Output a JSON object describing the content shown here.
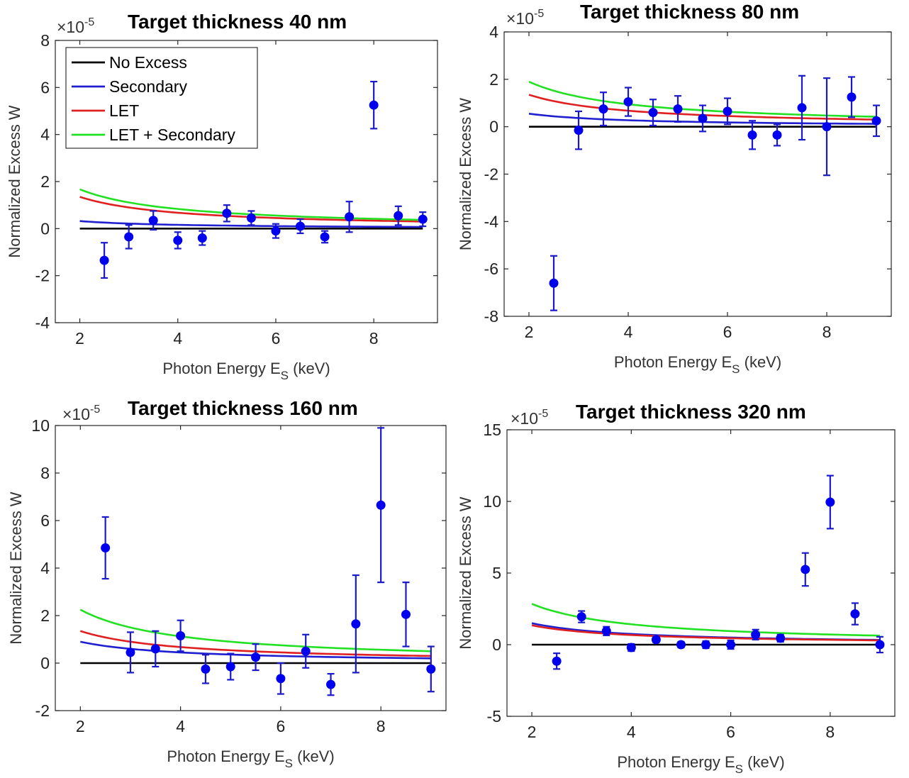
{
  "figure": {
    "xlabel_main": "Photon Energy  E",
    "xlabel_sub": "S",
    "xlabel_unit": "  (keV)",
    "ylabel": "Normalized Excess  W",
    "exponent_base": "×10",
    "exponent_power": "-5",
    "legend": {
      "placement": "top-left of first panel",
      "entries": [
        {
          "label": "No Excess",
          "color": "#000000"
        },
        {
          "label": "Secondary",
          "color": "#1f1fd0"
        },
        {
          "label": "LET",
          "color": "#e02020"
        },
        {
          "label": "LET + Secondary",
          "color": "#22e022"
        }
      ]
    },
    "colors": {
      "data_points": "#0000ee",
      "error_bars": "#1a1acc"
    }
  },
  "chart_data": [
    {
      "type": "scatter",
      "title": "Target thickness 40 nm",
      "xlabel": "Photon Energy E_S (keV)",
      "ylabel": "Normalized Excess W",
      "y_scale_factor": "×10^-5",
      "xlim": [
        1.5,
        9.3
      ],
      "ylim": [
        -4,
        8
      ],
      "xticks": [
        2,
        4,
        6,
        8
      ],
      "yticks": [
        -4,
        -2,
        0,
        2,
        4,
        6,
        8
      ],
      "legend": true,
      "points": [
        {
          "x": 2.5,
          "y": -1.35,
          "err": 0.75
        },
        {
          "x": 3.0,
          "y": -0.35,
          "err": 0.5
        },
        {
          "x": 3.5,
          "y": 0.35,
          "err": 0.4
        },
        {
          "x": 4.0,
          "y": -0.5,
          "err": 0.35
        },
        {
          "x": 4.5,
          "y": -0.4,
          "err": 0.3
        },
        {
          "x": 5.0,
          "y": 0.65,
          "err": 0.35
        },
        {
          "x": 5.5,
          "y": 0.45,
          "err": 0.3
        },
        {
          "x": 6.0,
          "y": -0.1,
          "err": 0.3
        },
        {
          "x": 6.5,
          "y": 0.1,
          "err": 0.3
        },
        {
          "x": 7.0,
          "y": -0.35,
          "err": 0.25
        },
        {
          "x": 7.5,
          "y": 0.5,
          "err": 0.65
        },
        {
          "x": 8.0,
          "y": 5.25,
          "err": 1.0
        },
        {
          "x": 8.5,
          "y": 0.55,
          "err": 0.4
        },
        {
          "x": 9.0,
          "y": 0.4,
          "err": 0.3
        }
      ],
      "series": [
        {
          "name": "No Excess",
          "x": [
            2,
            3,
            4,
            5,
            6,
            7,
            8,
            9
          ],
          "values": [
            0,
            0,
            0,
            0,
            0,
            0,
            0,
            0
          ]
        },
        {
          "name": "Secondary",
          "x": [
            2,
            3,
            4,
            5,
            6,
            7,
            8,
            9
          ],
          "values": [
            0.32,
            0.22,
            0.16,
            0.12,
            0.1,
            0.09,
            0.08,
            0.07
          ]
        },
        {
          "name": "LET",
          "x": [
            2,
            3,
            4,
            5,
            6,
            7,
            8,
            9
          ],
          "values": [
            1.35,
            0.95,
            0.72,
            0.57,
            0.47,
            0.4,
            0.35,
            0.3
          ]
        },
        {
          "name": "LET + Secondary",
          "x": [
            2,
            3,
            4,
            5,
            6,
            7,
            8,
            9
          ],
          "values": [
            1.67,
            1.17,
            0.88,
            0.69,
            0.57,
            0.49,
            0.43,
            0.37
          ]
        }
      ]
    },
    {
      "type": "scatter",
      "title": "Target thickness 80 nm",
      "xlabel": "Photon Energy E_S (keV)",
      "ylabel": "Normalized Excess W",
      "y_scale_factor": "×10^-5",
      "xlim": [
        1.5,
        9.3
      ],
      "ylim": [
        -8,
        4
      ],
      "xticks": [
        2,
        4,
        6,
        8
      ],
      "yticks": [
        -8,
        -6,
        -4,
        -2,
        0,
        2,
        4
      ],
      "legend": false,
      "points": [
        {
          "x": 2.5,
          "y": -6.6,
          "err": 1.15
        },
        {
          "x": 3.0,
          "y": -0.15,
          "err": 0.8
        },
        {
          "x": 3.5,
          "y": 0.75,
          "err": 0.7
        },
        {
          "x": 4.0,
          "y": 1.05,
          "err": 0.6
        },
        {
          "x": 4.5,
          "y": 0.6,
          "err": 0.55
        },
        {
          "x": 5.0,
          "y": 0.75,
          "err": 0.55
        },
        {
          "x": 5.5,
          "y": 0.35,
          "err": 0.55
        },
        {
          "x": 6.0,
          "y": 0.65,
          "err": 0.55
        },
        {
          "x": 6.5,
          "y": -0.35,
          "err": 0.6
        },
        {
          "x": 7.0,
          "y": -0.35,
          "err": 0.45
        },
        {
          "x": 7.5,
          "y": 0.8,
          "err": 1.35
        },
        {
          "x": 8.0,
          "y": 0.0,
          "err": 2.05
        },
        {
          "x": 8.5,
          "y": 1.25,
          "err": 0.85
        },
        {
          "x": 9.0,
          "y": 0.25,
          "err": 0.65
        }
      ],
      "series": [
        {
          "name": "No Excess",
          "x": [
            2,
            3,
            4,
            5,
            6,
            7,
            8,
            9
          ],
          "values": [
            0,
            0,
            0,
            0,
            0,
            0,
            0,
            0
          ]
        },
        {
          "name": "Secondary",
          "x": [
            2,
            3,
            4,
            5,
            6,
            7,
            8,
            9
          ],
          "values": [
            0.55,
            0.37,
            0.28,
            0.22,
            0.18,
            0.16,
            0.14,
            0.12
          ]
        },
        {
          "name": "LET",
          "x": [
            2,
            3,
            4,
            5,
            6,
            7,
            8,
            9
          ],
          "values": [
            1.35,
            0.95,
            0.72,
            0.57,
            0.47,
            0.4,
            0.35,
            0.3
          ]
        },
        {
          "name": "LET + Secondary",
          "x": [
            2,
            3,
            4,
            5,
            6,
            7,
            8,
            9
          ],
          "values": [
            1.9,
            1.32,
            1.0,
            0.79,
            0.65,
            0.56,
            0.49,
            0.42
          ]
        }
      ]
    },
    {
      "type": "scatter",
      "title": "Target thickness 160 nm",
      "xlabel": "Photon Energy E_S (keV)",
      "ylabel": "Normalized Excess W",
      "y_scale_factor": "×10^-5",
      "xlim": [
        1.5,
        9.3
      ],
      "ylim": [
        -2,
        10
      ],
      "xticks": [
        2,
        4,
        6,
        8
      ],
      "yticks": [
        -2,
        0,
        2,
        4,
        6,
        8,
        10
      ],
      "legend": false,
      "points": [
        {
          "x": 2.5,
          "y": 4.85,
          "err": 1.3
        },
        {
          "x": 3.0,
          "y": 0.45,
          "err": 0.85
        },
        {
          "x": 3.5,
          "y": 0.6,
          "err": 0.75
        },
        {
          "x": 4.0,
          "y": 1.15,
          "err": 0.65
        },
        {
          "x": 4.5,
          "y": -0.25,
          "err": 0.6
        },
        {
          "x": 5.0,
          "y": -0.15,
          "err": 0.55
        },
        {
          "x": 5.5,
          "y": 0.25,
          "err": 0.55
        },
        {
          "x": 6.0,
          "y": -0.65,
          "err": 0.65
        },
        {
          "x": 6.5,
          "y": 0.5,
          "err": 0.7
        },
        {
          "x": 7.0,
          "y": -0.9,
          "err": 0.45
        },
        {
          "x": 7.5,
          "y": 1.65,
          "err": 2.05
        },
        {
          "x": 8.0,
          "y": 6.65,
          "err": 3.25
        },
        {
          "x": 8.5,
          "y": 2.05,
          "err": 1.35
        },
        {
          "x": 9.0,
          "y": -0.25,
          "err": 0.95
        }
      ],
      "series": [
        {
          "name": "No Excess",
          "x": [
            2,
            3,
            4,
            5,
            6,
            7,
            8,
            9
          ],
          "values": [
            0,
            0,
            0,
            0,
            0,
            0,
            0,
            0
          ]
        },
        {
          "name": "Secondary",
          "x": [
            2,
            3,
            4,
            5,
            6,
            7,
            8,
            9
          ],
          "values": [
            0.9,
            0.6,
            0.45,
            0.36,
            0.3,
            0.26,
            0.23,
            0.2
          ]
        },
        {
          "name": "LET",
          "x": [
            2,
            3,
            4,
            5,
            6,
            7,
            8,
            9
          ],
          "values": [
            1.35,
            0.95,
            0.72,
            0.57,
            0.47,
            0.4,
            0.35,
            0.3
          ]
        },
        {
          "name": "LET + Secondary",
          "x": [
            2,
            3,
            4,
            5,
            6,
            7,
            8,
            9
          ],
          "values": [
            2.25,
            1.55,
            1.17,
            0.93,
            0.77,
            0.66,
            0.58,
            0.5
          ]
        }
      ]
    },
    {
      "type": "scatter",
      "title": "Target thickness 320 nm",
      "xlabel": "Photon Energy E_S (keV)",
      "ylabel": "Normalized Excess W",
      "y_scale_factor": "×10^-5",
      "xlim": [
        1.5,
        9.3
      ],
      "ylim": [
        -5,
        15
      ],
      "xticks": [
        2,
        4,
        6,
        8
      ],
      "yticks": [
        -5,
        0,
        5,
        10,
        15
      ],
      "legend": false,
      "points": [
        {
          "x": 2.5,
          "y": -1.15,
          "err": 0.55
        },
        {
          "x": 3.0,
          "y": 1.95,
          "err": 0.4
        },
        {
          "x": 3.5,
          "y": 0.95,
          "err": 0.3
        },
        {
          "x": 4.0,
          "y": -0.2,
          "err": 0.25
        },
        {
          "x": 4.5,
          "y": 0.35,
          "err": 0.2
        },
        {
          "x": 5.0,
          "y": 0.0,
          "err": 0.2
        },
        {
          "x": 5.5,
          "y": 0.0,
          "err": 0.25
        },
        {
          "x": 6.0,
          "y": 0.0,
          "err": 0.3
        },
        {
          "x": 6.5,
          "y": 0.7,
          "err": 0.35
        },
        {
          "x": 7.0,
          "y": 0.45,
          "err": 0.25
        },
        {
          "x": 7.5,
          "y": 5.25,
          "err": 1.15
        },
        {
          "x": 8.0,
          "y": 9.95,
          "err": 1.85
        },
        {
          "x": 8.5,
          "y": 2.15,
          "err": 0.75
        },
        {
          "x": 9.0,
          "y": 0.0,
          "err": 0.55
        }
      ],
      "series": [
        {
          "name": "No Excess",
          "x": [
            2,
            3,
            4,
            5,
            6,
            7,
            8,
            9
          ],
          "values": [
            0,
            0,
            0,
            0,
            0,
            0,
            0,
            0
          ]
        },
        {
          "name": "Secondary",
          "x": [
            2,
            3,
            4,
            5,
            6,
            7,
            8,
            9
          ],
          "values": [
            1.5,
            1.0,
            0.75,
            0.6,
            0.5,
            0.43,
            0.38,
            0.33
          ]
        },
        {
          "name": "LET",
          "x": [
            2,
            3,
            4,
            5,
            6,
            7,
            8,
            9
          ],
          "values": [
            1.35,
            0.95,
            0.72,
            0.57,
            0.47,
            0.4,
            0.35,
            0.3
          ]
        },
        {
          "name": "LET + Secondary",
          "x": [
            2,
            3,
            4,
            5,
            6,
            7,
            8,
            9
          ],
          "values": [
            2.85,
            1.95,
            1.47,
            1.17,
            0.97,
            0.83,
            0.73,
            0.63
          ]
        }
      ]
    }
  ]
}
